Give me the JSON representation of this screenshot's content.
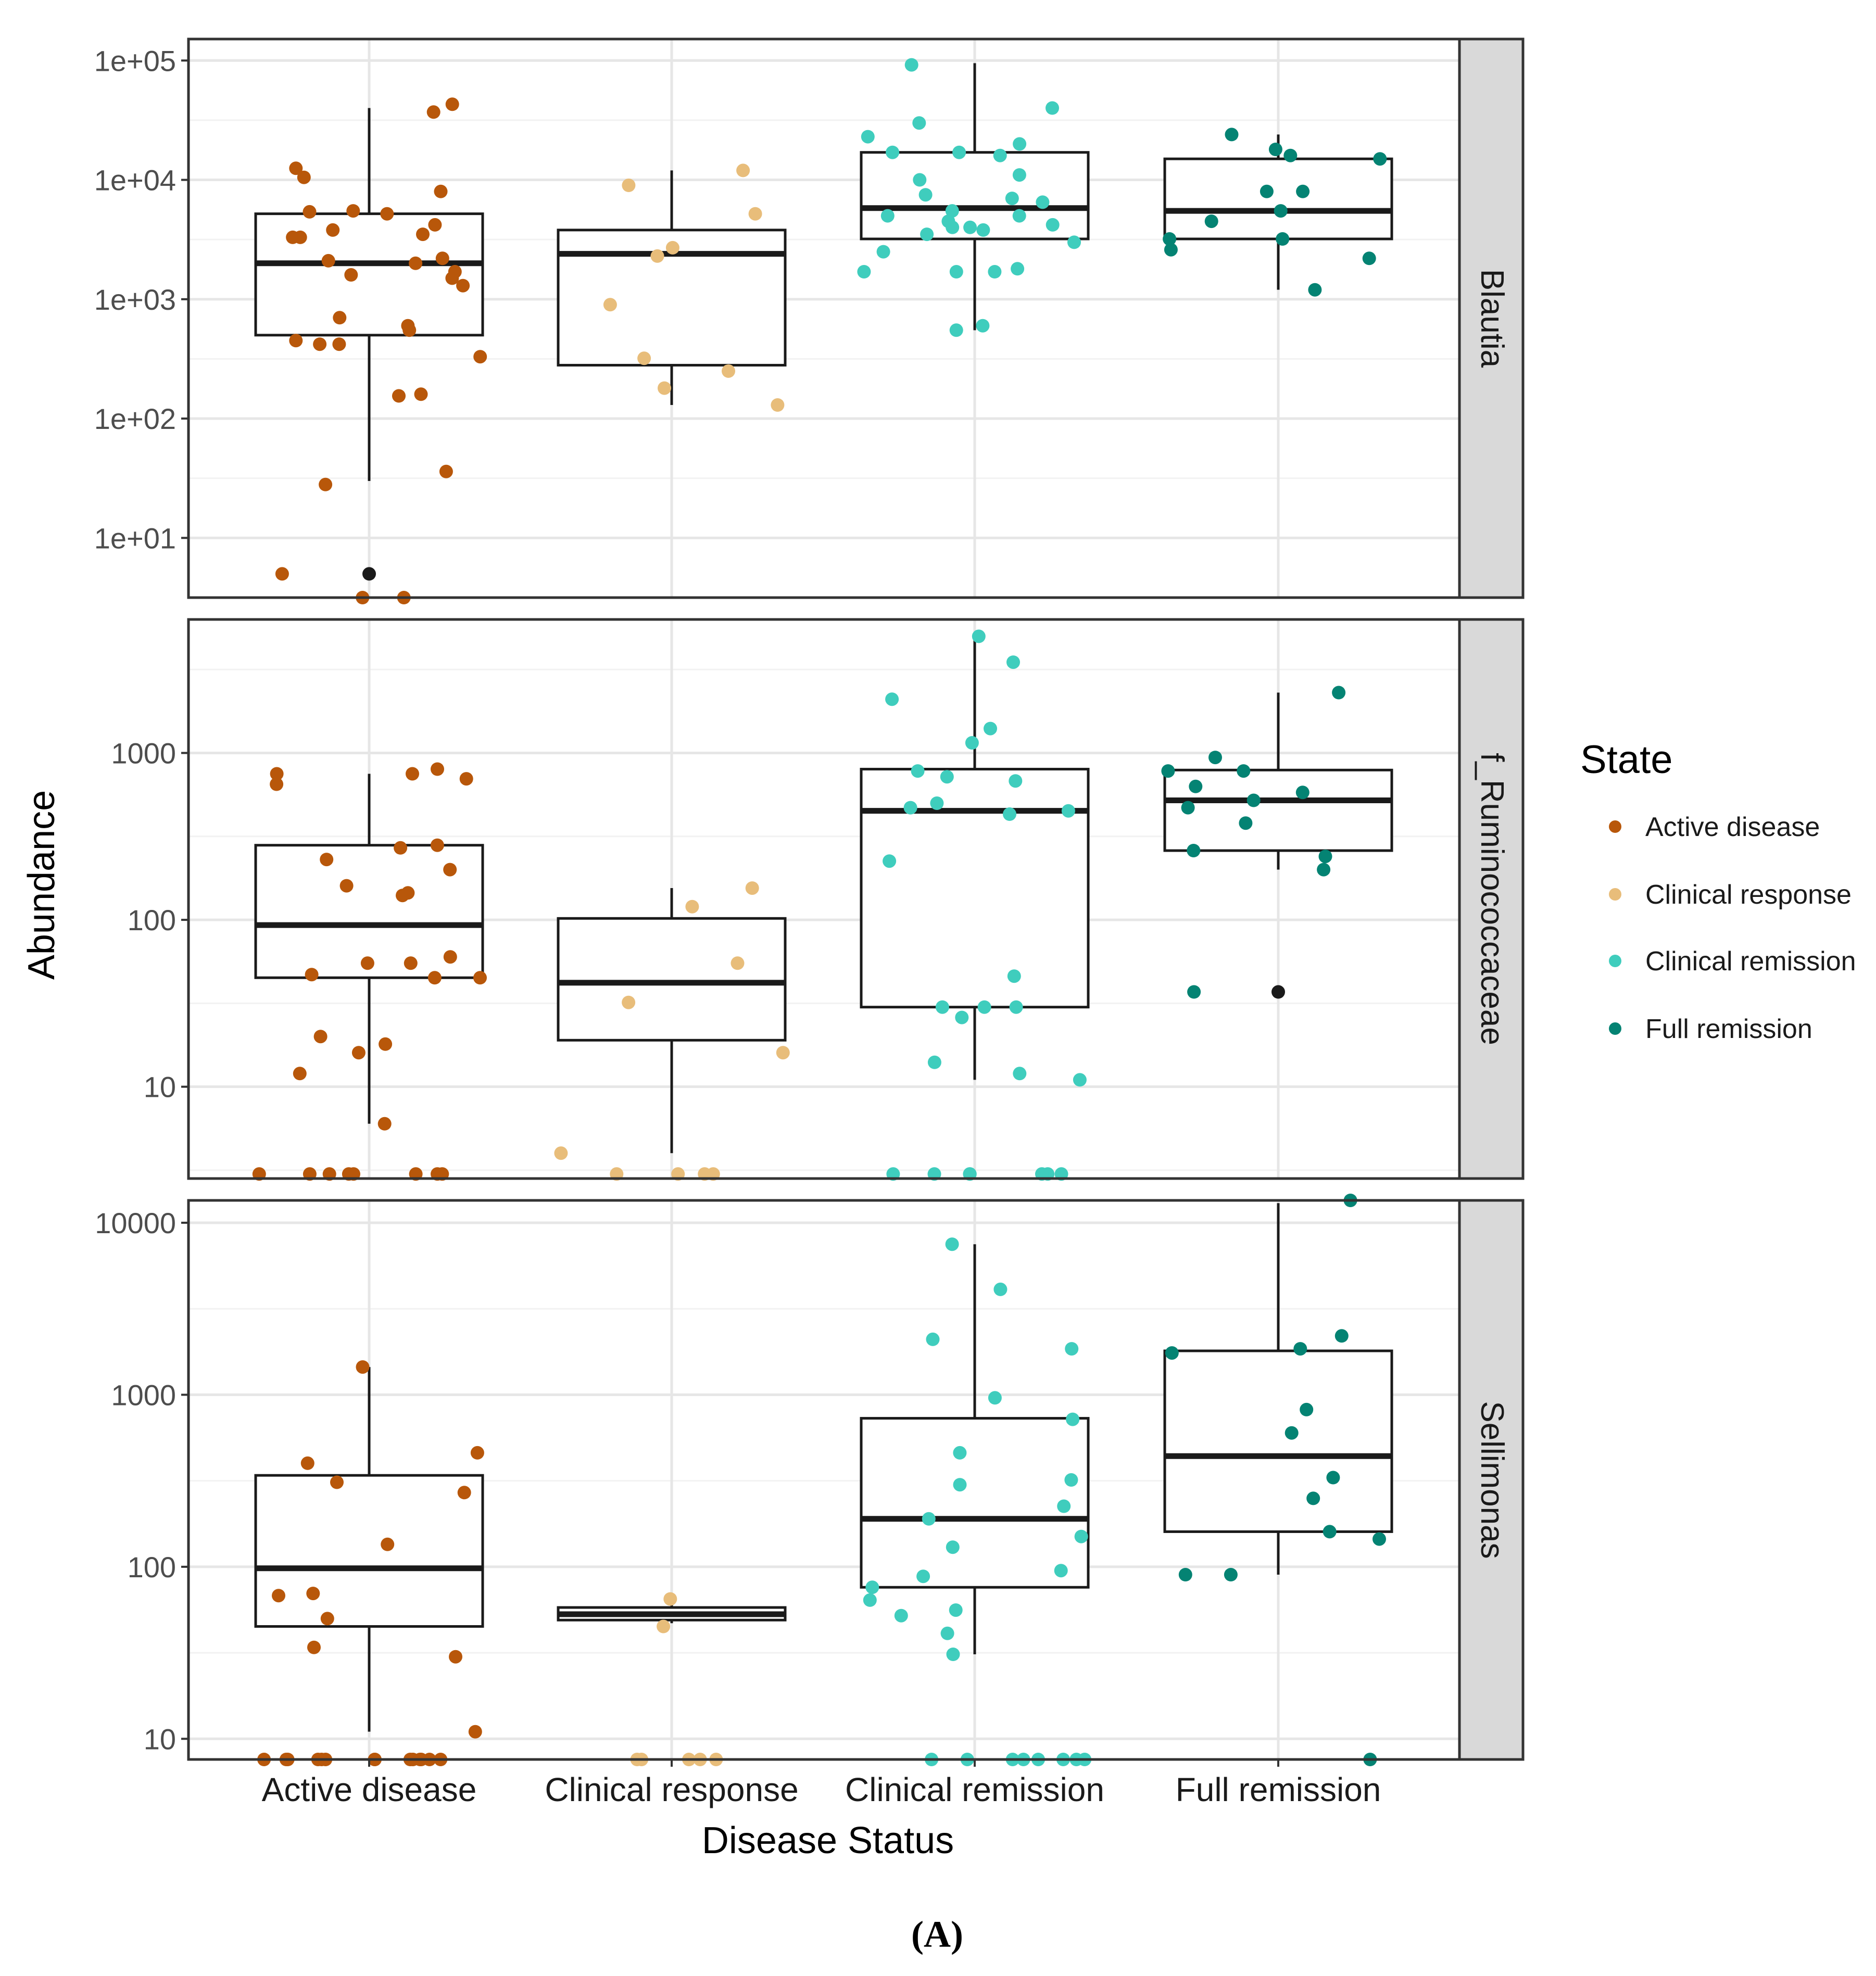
{
  "chart_data": {
    "type": "box",
    "xlabel": "Disease Status",
    "ylabel": "Abundance",
    "categories": [
      "Active disease",
      "Clinical response",
      "Clinical remission",
      "Full remission"
    ],
    "legend": {
      "title": "State",
      "position": "right",
      "items": [
        {
          "label": "Active disease",
          "color": "#b8570a"
        },
        {
          "label": "Clinical response",
          "color": "#e8bd7a"
        },
        {
          "label": "Clinical remission",
          "color": "#3fcdbd"
        },
        {
          "label": "Full remission",
          "color": "#048373"
        }
      ]
    },
    "outlier_color": "#1a1a1a",
    "caption": "(A)",
    "panels": [
      {
        "strip": "Blautia",
        "scale": "log10",
        "ylim_log10": [
          0.5,
          5.18
        ],
        "ticks": [
          {
            "value_log10": 1,
            "label": "1e+01"
          },
          {
            "value_log10": 2,
            "label": "1e+02"
          },
          {
            "value_log10": 3,
            "label": "1e+03"
          },
          {
            "value_log10": 4,
            "label": "1e+04"
          },
          {
            "value_log10": 5,
            "label": "1e+05"
          }
        ],
        "boxes": [
          {
            "category": "Active disease",
            "lower_whisker": 30,
            "q1": 500,
            "median": 2000,
            "q3": 5200,
            "upper_whisker": 40000,
            "outliers": [
              5
            ]
          },
          {
            "category": "Clinical response",
            "lower_whisker": 130,
            "q1": 280,
            "median": 2400,
            "q3": 3800,
            "upper_whisker": 12000,
            "outliers": []
          },
          {
            "category": "Clinical remission",
            "lower_whisker": 550,
            "q1": 3200,
            "median": 5800,
            "q3": 17000,
            "upper_whisker": 95000,
            "outliers": []
          },
          {
            "category": "Full remission",
            "lower_whisker": 1200,
            "q1": 3200,
            "median": 5500,
            "q3": 15000,
            "upper_whisker": 24000,
            "outliers": []
          }
        ],
        "points": [
          {
            "category": "Active disease",
            "values": [
              3,
              28,
              155,
              330,
              550,
              600,
              450,
              1700,
              2000,
              2200,
              3500,
              3800,
              4200,
              3300,
              5200,
              5400,
              10500,
              37000,
              43000,
              36,
              5,
              3,
              160,
              420,
              420,
              700,
              1300,
              1500,
              1600,
              5500,
              8000,
              12500,
              3300,
              2100
            ]
          },
          {
            "category": "Clinical response",
            "values": [
              320,
              2700,
              130,
              180,
              250,
              900,
              2300,
              5200,
              12000,
              9000
            ]
          },
          {
            "category": "Clinical remission",
            "values": [
              600,
              40000,
              20000,
              5000,
              1700,
              2500,
              1800,
              5500,
              11000,
              10000,
              4500,
              4000,
              1700,
              3000,
              17000,
              23000,
              30000,
              17000,
              7000,
              1700,
              3500,
              7500,
              550,
              92000,
              6500,
              4000,
              3800,
              4200,
              16000,
              5000
            ]
          },
          {
            "category": "Full remission",
            "values": [
              2600,
              16000,
              8000,
              5500,
              1200,
              24000,
              18000,
              15000,
              4500,
              3200,
              2200,
              8000,
              3200
            ]
          }
        ]
      },
      {
        "strip": "f_Ruminococcaceae",
        "scale": "log10",
        "ylim_log10": [
          0.45,
          3.8
        ],
        "ticks": [
          {
            "value_log10": 1,
            "label": "10"
          },
          {
            "value_log10": 2,
            "label": "100"
          },
          {
            "value_log10": 3,
            "label": "1000"
          }
        ],
        "boxes": [
          {
            "category": "Active disease",
            "lower_whisker": 6,
            "q1": 45,
            "median": 93,
            "q3": 280,
            "upper_whisker": 750,
            "outliers": []
          },
          {
            "category": "Clinical response",
            "lower_whisker": 4,
            "q1": 19,
            "median": 42,
            "q3": 102,
            "upper_whisker": 155,
            "outliers": []
          },
          {
            "category": "Clinical remission",
            "lower_whisker": 11,
            "q1": 30,
            "median": 450,
            "q3": 800,
            "upper_whisker": 5000,
            "outliers": []
          },
          {
            "category": "Full remission",
            "lower_whisker": 200,
            "q1": 260,
            "median": 520,
            "q3": 790,
            "upper_whisker": 2300,
            "outliers": [
              37
            ]
          }
        ],
        "points": [
          {
            "category": "Active disease",
            "values": [
              270,
              140,
              160,
              800,
              55,
              20,
              45,
              45,
              55,
              12,
              6,
              145,
              60,
              18,
              750,
              650,
              700,
              750,
              47,
              16,
              280,
              230,
              200,
              3,
              3,
              3,
              3,
              3,
              3,
              3,
              3
            ]
          },
          {
            "category": "Clinical response",
            "values": [
              55,
              16,
              120,
              155,
              32,
              4,
              3,
              3,
              3,
              3
            ]
          },
          {
            "category": "Clinical remission",
            "values": [
              3500,
              1150,
              430,
              450,
              680,
              2100,
              1400,
              470,
              46,
              26,
              14,
              30,
              30,
              720,
              780,
              500,
              225,
              30,
              11,
              12,
              5000,
              3,
              3,
              3,
              3,
              3,
              3,
              3
            ]
          },
          {
            "category": "Full remission",
            "values": [
              780,
              780,
              580,
              520,
              470,
              630,
              260,
              37,
              2300,
              240,
              200,
              380,
              940
            ]
          }
        ]
      },
      {
        "strip": "Sellimonas",
        "scale": "log10",
        "ylim_log10": [
          0.88,
          4.13
        ],
        "ticks": [
          {
            "value_log10": 1,
            "label": "10"
          },
          {
            "value_log10": 2,
            "label": "100"
          },
          {
            "value_log10": 3,
            "label": "1000"
          },
          {
            "value_log10": 4,
            "label": "10000"
          }
        ],
        "boxes": [
          {
            "category": "Active disease",
            "lower_whisker": 11,
            "q1": 45,
            "median": 98,
            "q3": 340,
            "upper_whisker": 1450,
            "outliers": []
          },
          {
            "category": "Clinical response",
            "lower_whisker": 47,
            "q1": 49,
            "median": 53,
            "q3": 58,
            "upper_whisker": 62,
            "outliers": []
          },
          {
            "category": "Clinical remission",
            "lower_whisker": 31,
            "q1": 76,
            "median": 190,
            "q3": 730,
            "upper_whisker": 7500,
            "outliers": []
          },
          {
            "category": "Full remission",
            "lower_whisker": 90,
            "q1": 160,
            "median": 440,
            "q3": 1800,
            "upper_whisker": 13000,
            "outliers": []
          }
        ],
        "points": [
          {
            "category": "Active disease",
            "values": [
              1450,
              270,
              50,
              68,
              30,
              310,
              460,
              400,
              70,
              135,
              11,
              34,
              7.5,
              7.5,
              7.5,
              7.5,
              7.5,
              7.5,
              7.5,
              7.5,
              7.5,
              7.5,
              7.5,
              7.5,
              7.5,
              7.5
            ]
          },
          {
            "category": "Clinical response",
            "values": [
              65,
              45,
              7.5,
              7.5,
              7.5,
              7.5,
              7.5
            ]
          },
          {
            "category": "Clinical remission",
            "values": [
              300,
              460,
              960,
              2100,
              1850,
              320,
              4100,
              130,
              95,
              88,
              76,
              31,
              7500,
              720,
              150,
              64,
              56,
              41,
              52,
              225,
              190,
              7.5,
              7.5,
              7.5,
              7.5,
              7.5,
              7.5,
              7.5,
              7.5
            ]
          },
          {
            "category": "Full remission",
            "values": [
              2200,
              1850,
              820,
              600,
              90,
              7.5,
              330,
              1750,
              250,
              90,
              13500,
              160,
              145
            ]
          }
        ]
      }
    ]
  }
}
